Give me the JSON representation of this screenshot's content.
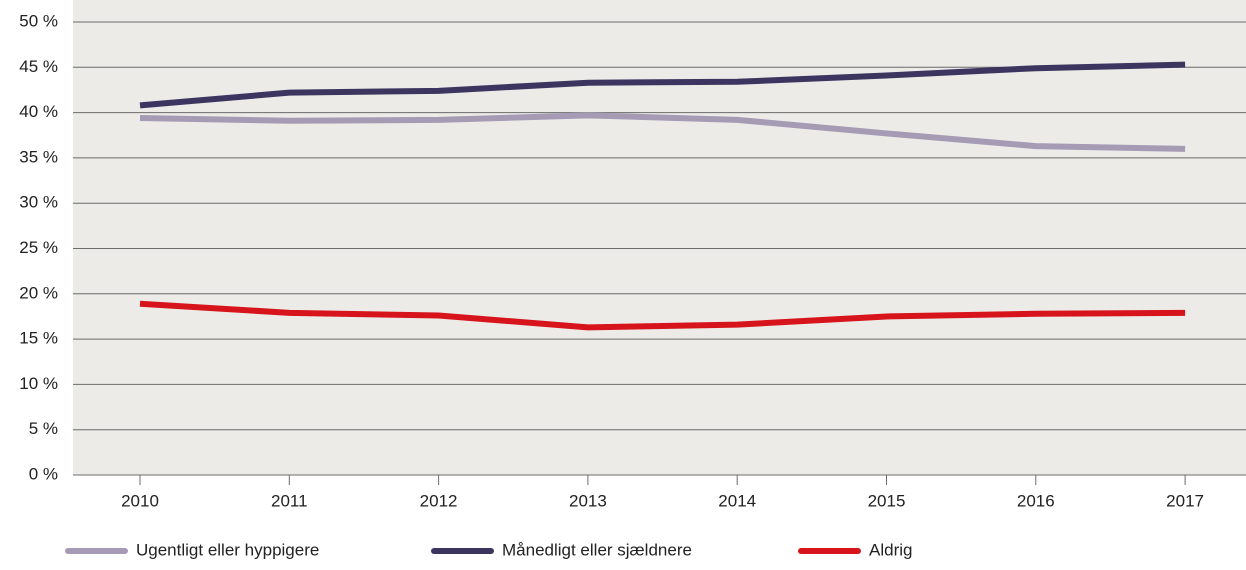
{
  "chart_data": {
    "type": "line",
    "categories": [
      "2010",
      "2011",
      "2012",
      "2013",
      "2014",
      "2015",
      "2016",
      "2017"
    ],
    "series": [
      {
        "name": "Ugentligt eller hyppigere",
        "color": "#a59bb5",
        "values": [
          39.4,
          39.1,
          39.2,
          39.7,
          39.2,
          37.7,
          36.3,
          36.0
        ]
      },
      {
        "name": "Månedligt eller sjældnere",
        "color": "#3c3560",
        "values": [
          40.8,
          42.2,
          42.4,
          43.3,
          43.4,
          44.1,
          44.9,
          45.3
        ]
      },
      {
        "name": "Aldrig",
        "color": "#d7141c",
        "values": [
          18.9,
          17.9,
          17.6,
          16.3,
          16.6,
          17.5,
          17.8,
          17.9
        ]
      }
    ],
    "ylim": [
      0,
      50
    ],
    "yticks": [
      {
        "value": 0,
        "label": "0 %"
      },
      {
        "value": 5,
        "label": "5 %"
      },
      {
        "value": 10,
        "label": "10 %"
      },
      {
        "value": 15,
        "label": "15 %"
      },
      {
        "value": 20,
        "label": "20 %"
      },
      {
        "value": 25,
        "label": "25 %"
      },
      {
        "value": 30,
        "label": "30 %"
      },
      {
        "value": 35,
        "label": "35 %"
      },
      {
        "value": 40,
        "label": "40 %"
      },
      {
        "value": 45,
        "label": "45 %"
      },
      {
        "value": 50,
        "label": "50 %"
      }
    ],
    "grid": true,
    "legend": "bottom"
  }
}
